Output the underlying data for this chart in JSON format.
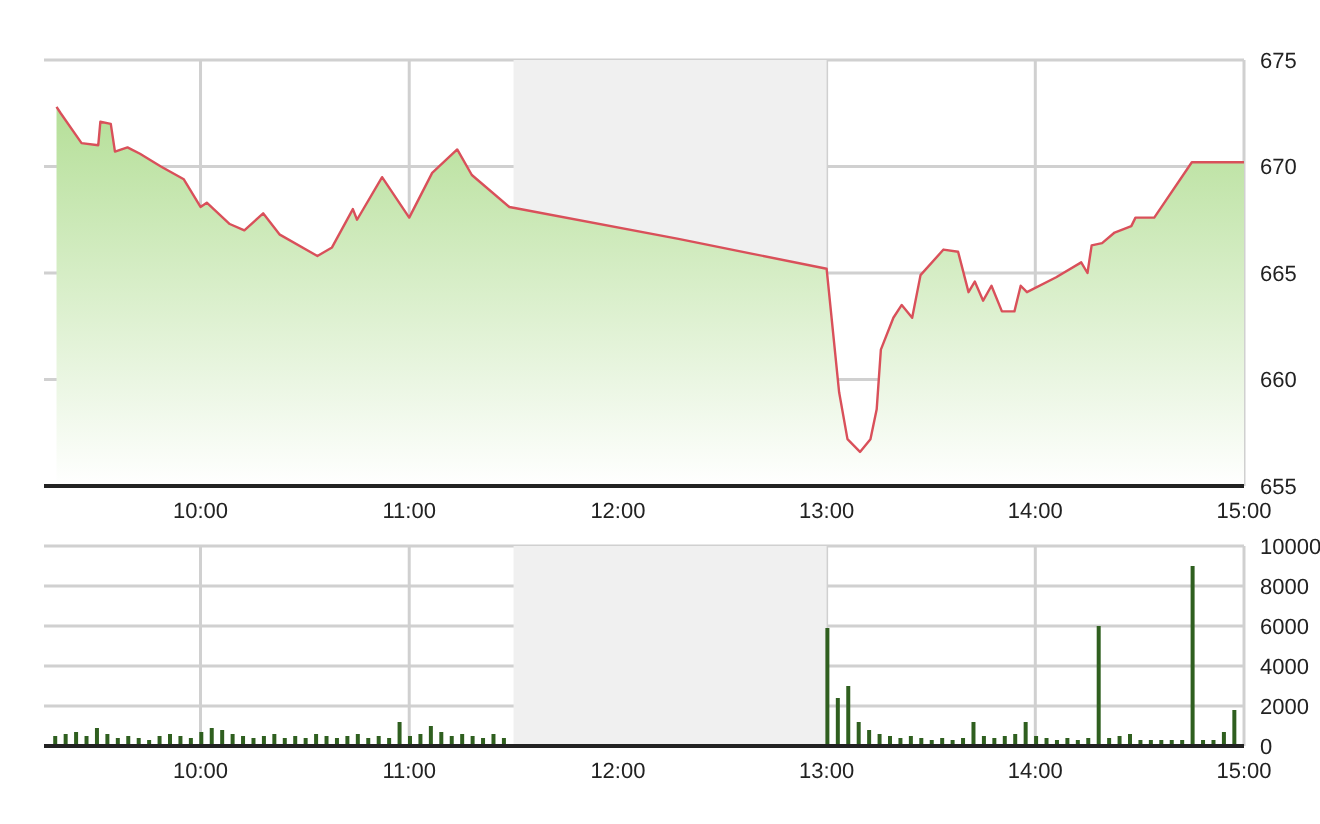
{
  "chart_data": [
    {
      "type": "area",
      "xlim": [
        9.25,
        15
      ],
      "xticks": [
        {
          "value": 10,
          "label": "10:00"
        },
        {
          "value": 11,
          "label": "11:00"
        },
        {
          "value": 12,
          "label": "12:00"
        },
        {
          "value": 13,
          "label": "13:00"
        },
        {
          "value": 14,
          "label": "14:00"
        },
        {
          "value": 15,
          "label": "15:00"
        }
      ],
      "ylim": [
        655,
        675
      ],
      "yticks": [
        655,
        660,
        665,
        670,
        675
      ],
      "grid": true,
      "bands": [
        {
          "axis": "x",
          "from": 11.5,
          "to": 13,
          "color": "#f0f0f0"
        }
      ],
      "series": [
        {
          "color": "#d9505a",
          "x": [
            9.31,
            9.33,
            9.43,
            9.51,
            9.52,
            9.57,
            9.59,
            9.65,
            9.71,
            9.81,
            9.92,
            10.0,
            10.03,
            10.14,
            10.21,
            10.3,
            10.38,
            10.56,
            10.63,
            10.73,
            10.75,
            10.87,
            11.0,
            11.11,
            11.23,
            11.3,
            11.48,
            12.29,
            13.0,
            13.06,
            13.1,
            13.16,
            13.21,
            13.24,
            13.26,
            13.32,
            13.36,
            13.41,
            13.45,
            13.56,
            13.63,
            13.68,
            13.71,
            13.75,
            13.79,
            13.84,
            13.9,
            13.93,
            13.96,
            14.1,
            14.22,
            14.25,
            14.27,
            14.32,
            14.38,
            14.46,
            14.48,
            14.57,
            14.75,
            15.0
          ],
          "values": [
            672.8,
            672.5,
            671.1,
            671.0,
            672.1,
            672.0,
            670.7,
            670.9,
            670.6,
            670.0,
            669.4,
            668.1,
            668.3,
            667.3,
            667.0,
            667.8,
            666.8,
            665.8,
            666.2,
            668.0,
            667.5,
            669.5,
            667.6,
            669.7,
            670.8,
            669.6,
            668.1,
            666.6,
            665.2,
            659.4,
            657.2,
            656.6,
            657.2,
            658.6,
            661.4,
            662.9,
            663.5,
            662.9,
            664.9,
            666.1,
            666.0,
            664.1,
            664.6,
            663.7,
            664.4,
            663.2,
            663.2,
            664.4,
            664.1,
            664.8,
            665.5,
            665.0,
            666.3,
            666.4,
            666.9,
            667.2,
            667.6,
            667.6,
            670.2,
            670.2
          ]
        }
      ]
    },
    {
      "type": "bar",
      "xlim": [
        9.25,
        15
      ],
      "xticks": [
        {
          "value": 10,
          "label": "10:00"
        },
        {
          "value": 11,
          "label": "11:00"
        },
        {
          "value": 12,
          "label": "12:00"
        },
        {
          "value": 13,
          "label": "13:00"
        },
        {
          "value": 14,
          "label": "14:00"
        },
        {
          "value": 15,
          "label": "15:00"
        }
      ],
      "ylim": [
        0,
        10000
      ],
      "yticks": [
        0,
        2000,
        4000,
        6000,
        8000,
        10000
      ],
      "grid": true,
      "bands": [
        {
          "axis": "x",
          "from": 11.5,
          "to": 13,
          "color": "#f0f0f0"
        }
      ],
      "series": [
        {
          "color": "#2f5f1f",
          "x": [
            9.3,
            9.35,
            9.4,
            9.45,
            9.5,
            9.55,
            9.6,
            9.65,
            9.7,
            9.75,
            9.8,
            9.85,
            9.9,
            9.95,
            10.0,
            10.05,
            10.1,
            10.15,
            10.2,
            10.25,
            10.3,
            10.35,
            10.4,
            10.45,
            10.5,
            10.55,
            10.6,
            10.65,
            10.7,
            10.75,
            10.8,
            10.85,
            10.9,
            10.95,
            11.0,
            11.05,
            11.1,
            11.15,
            11.2,
            11.25,
            11.3,
            11.35,
            11.4,
            11.45,
            13.0,
            13.05,
            13.1,
            13.15,
            13.2,
            13.25,
            13.3,
            13.35,
            13.4,
            13.45,
            13.5,
            13.55,
            13.6,
            13.65,
            13.7,
            13.75,
            13.8,
            13.85,
            13.9,
            13.95,
            14.0,
            14.05,
            14.1,
            14.15,
            14.2,
            14.25,
            14.3,
            14.35,
            14.4,
            14.45,
            14.5,
            14.55,
            14.6,
            14.65,
            14.7,
            14.75,
            14.8,
            14.85,
            14.9,
            14.95
          ],
          "values": [
            500,
            600,
            700,
            500,
            900,
            600,
            400,
            500,
            400,
            300,
            500,
            600,
            500,
            400,
            700,
            900,
            800,
            600,
            500,
            400,
            500,
            600,
            400,
            500,
            400,
            600,
            500,
            400,
            500,
            600,
            400,
            500,
            400,
            1200,
            500,
            600,
            1000,
            700,
            500,
            600,
            500,
            400,
            600,
            400,
            5900,
            2400,
            3000,
            1200,
            800,
            600,
            500,
            400,
            500,
            400,
            300,
            400,
            300,
            400,
            1200,
            500,
            400,
            500,
            600,
            1200,
            500,
            400,
            300,
            400,
            300,
            400,
            6000,
            400,
            500,
            600,
            300,
            300,
            300,
            300,
            300,
            9000,
            300,
            300,
            700,
            1800
          ]
        }
      ]
    }
  ]
}
